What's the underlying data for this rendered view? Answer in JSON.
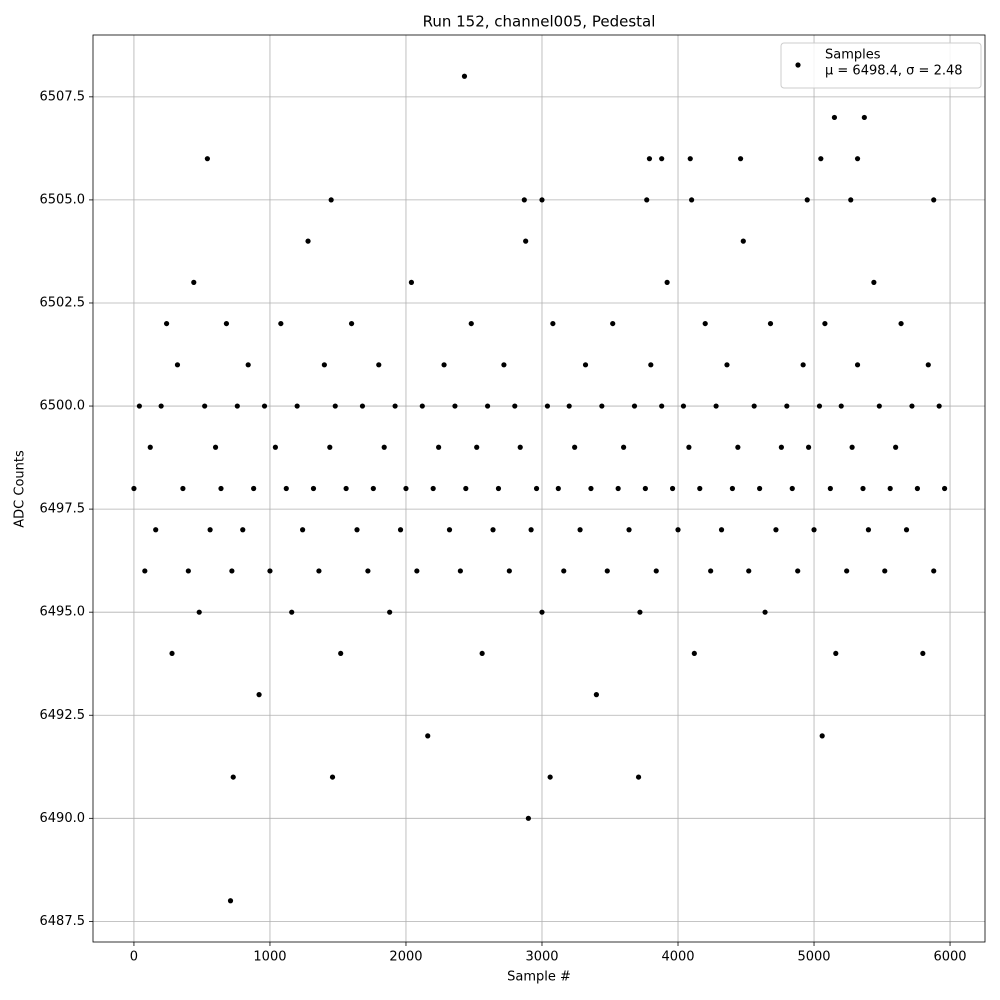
{
  "chart_data": {
    "type": "scatter",
    "title": "Run 152, channel005, Pedestal",
    "xlabel": "Sample #",
    "ylabel": "ADC Counts",
    "xlim": [
      -301,
      6257
    ],
    "ylim": [
      6487.0,
      6509.0
    ],
    "xticks": [
      0,
      1000,
      2000,
      3000,
      4000,
      5000,
      6000
    ],
    "yticks": [
      6487.5,
      {
        "value": 6490,
        "label": "6490.0"
      },
      6492.5,
      {
        "value": 6495,
        "label": "6495.0"
      },
      6497.5,
      {
        "value": 6500,
        "label": "6500.0"
      },
      6502.5,
      {
        "value": 6505,
        "label": "6505.0"
      },
      6507.5
    ],
    "grid": true,
    "legend": "upper right",
    "annotation": "μ = 6498.4, σ = 2.48",
    "x": [
      0,
      40,
      80,
      120,
      160,
      200,
      240,
      280,
      320,
      360,
      400,
      440,
      480,
      520,
      560,
      600,
      640,
      680,
      720,
      760,
      800,
      840,
      880,
      920,
      960,
      1000,
      1040,
      1080,
      1120,
      1160,
      1200,
      1240,
      1280,
      1320,
      1360,
      1400,
      1440,
      1480,
      1520,
      1560,
      1600,
      1640,
      1680,
      1720,
      1760,
      1800,
      1840,
      1880,
      1920,
      1960,
      2000,
      2040,
      2080,
      2120,
      2160,
      2200,
      2240,
      2280,
      2320,
      2360,
      2400,
      2440,
      2480,
      2520,
      2560,
      2600,
      2640,
      2680,
      2720,
      2760,
      2800,
      2840,
      2880,
      2920,
      2960,
      3000,
      3040,
      3080,
      3120,
      3160,
      3200,
      3240,
      3280,
      3320,
      3360,
      3400,
      3440,
      3480,
      3520,
      3560,
      3600,
      3640,
      3680,
      3720,
      3760,
      3800,
      3840,
      3880,
      3920,
      3960,
      4000,
      4040,
      4080,
      4120,
      4160,
      4200,
      4240,
      4280,
      4320,
      4360,
      4400,
      4440,
      4480,
      4520,
      4560,
      4600,
      4640,
      4680,
      4720,
      4760,
      4800,
      4840,
      4880,
      4920,
      4960,
      5000,
      5040,
      5080,
      5120,
      5160,
      5200,
      5240,
      5280,
      5320,
      5360,
      5400,
      5440,
      5480,
      5520,
      5560,
      5600,
      5640,
      5680,
      5720,
      5760,
      5800,
      5840,
      5880,
      5920,
      5960,
      2430,
      540,
      710,
      2900,
      5150,
      5370,
      1450,
      730,
      1460,
      3060,
      3710,
      3880,
      4090,
      4460,
      5050,
      5320,
      3790,
      2870,
      3000,
      3770,
      4100,
      4950,
      5270,
      5880,
      5060
    ],
    "series": [
      {
        "name": "Samples",
        "color": "#000000",
        "values": [
          6498,
          6500,
          6496,
          6499,
          6497,
          6500,
          6502,
          6494,
          6501,
          6498,
          6496,
          6503,
          6495,
          6500,
          6497,
          6499,
          6498,
          6502,
          6496,
          6500,
          6497,
          6501,
          6498,
          6493,
          6500,
          6496,
          6499,
          6502,
          6498,
          6495,
          6500,
          6497,
          6504,
          6498,
          6496,
          6501,
          6499,
          6500,
          6494,
          6498,
          6502,
          6497,
          6500,
          6496,
          6498,
          6501,
          6499,
          6495,
          6500,
          6497,
          6498,
          6503,
          6496,
          6500,
          6492,
          6498,
          6499,
          6501,
          6497,
          6500,
          6496,
          6498,
          6502,
          6499,
          6494,
          6500,
          6497,
          6498,
          6501,
          6496,
          6500,
          6499,
          6504,
          6497,
          6498,
          6495,
          6500,
          6502,
          6498,
          6496,
          6500,
          6499,
          6497,
          6501,
          6498,
          6493,
          6500,
          6496,
          6502,
          6498,
          6499,
          6497,
          6500,
          6495,
          6498,
          6501,
          6496,
          6500,
          6503,
          6498,
          6497,
          6500,
          6499,
          6494,
          6498,
          6502,
          6496,
          6500,
          6497,
          6501,
          6498,
          6499,
          6504,
          6496,
          6500,
          6498,
          6495,
          6502,
          6497,
          6499,
          6500,
          6498,
          6496,
          6501,
          6499,
          6497,
          6500,
          6502,
          6498,
          6494,
          6500,
          6496,
          6499,
          6501,
          6498,
          6497,
          6503,
          6500,
          6496,
          6498,
          6499,
          6502,
          6497,
          6500,
          6498,
          6494,
          6501,
          6496,
          6500,
          6498,
          6508,
          6506,
          6488,
          6490,
          6507,
          6507,
          6505,
          6491,
          6491,
          6491,
          6491,
          6506,
          6506,
          6506,
          6506,
          6506,
          6506,
          6505,
          6505,
          6505,
          6505,
          6505,
          6505,
          6505,
          6492
        ]
      }
    ]
  }
}
